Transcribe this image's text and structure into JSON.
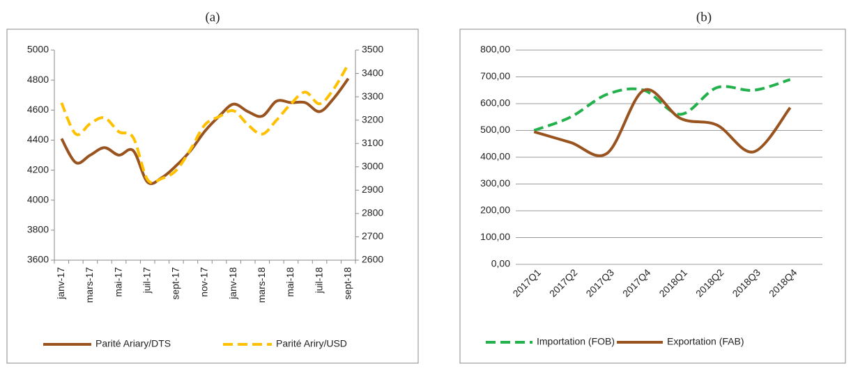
{
  "chart_data": [
    {
      "type": "line",
      "title": "(a)",
      "categories": [
        "janv-17",
        null,
        "mars-17",
        null,
        "mai-17",
        null,
        "juil-17",
        null,
        "sept-17",
        null,
        "nov-17",
        null,
        "janv-18",
        null,
        "mars-18",
        null,
        "mai-18",
        null,
        "juil-18",
        null,
        "sept-18"
      ],
      "series": [
        {
          "name": "Parité Ariary/DTS",
          "color": "#99531f",
          "line_style": "solid",
          "values": [
            4410,
            4250,
            4300,
            4350,
            4300,
            4330,
            4120,
            4150,
            4230,
            4330,
            4460,
            4560,
            4640,
            4590,
            4560,
            4660,
            4650,
            4650,
            4590,
            4680,
            4810
          ]
        },
        {
          "name": "Parité Ariry/USD",
          "color": "#ffc000",
          "line_style": "dashed",
          "axis": "y2",
          "values": [
            3274,
            3140,
            3185,
            3210,
            3150,
            3125,
            2945,
            2950,
            2985,
            3075,
            3180,
            3215,
            3240,
            3180,
            3140,
            3200,
            3270,
            3320,
            3270,
            3335,
            3440
          ]
        }
      ],
      "ylim": [
        3600,
        5000
      ],
      "yticks": [
        3600,
        3800,
        4000,
        4200,
        4400,
        4600,
        4800,
        5000
      ],
      "y2lim": [
        2600,
        3500
      ],
      "y2ticks": [
        2600,
        2700,
        2800,
        2900,
        3000,
        3100,
        3200,
        3300,
        3400,
        3500
      ],
      "grid": false,
      "legend": "bottom"
    },
    {
      "type": "line",
      "title": "(b)",
      "categories": [
        "2017Q1",
        "2017Q2",
        "2017Q3",
        "2017Q4",
        "2018Q1",
        "2018Q2",
        "2018Q3",
        "2018Q4"
      ],
      "series": [
        {
          "name": "Importation (FOB)",
          "color": "#22b14c",
          "line_style": "dashed",
          "values": [
            500,
            550,
            635,
            650,
            560,
            660,
            650,
            690
          ]
        },
        {
          "name": "Exportation (FAB)",
          "color": "#99531f",
          "line_style": "solid",
          "values": [
            495,
            455,
            415,
            650,
            545,
            520,
            420,
            585
          ]
        }
      ],
      "ylim": [
        0,
        800
      ],
      "yticks": [
        {
          "value": 0,
          "label": "0,00"
        },
        {
          "value": 100,
          "label": "100,00"
        },
        {
          "value": 200,
          "label": "200,00"
        },
        {
          "value": 300,
          "label": "300,00"
        },
        {
          "value": 400,
          "label": "400,00"
        },
        {
          "value": 500,
          "label": "500,00"
        },
        {
          "value": 600,
          "label": "600,00"
        },
        {
          "value": 700,
          "label": "700,00"
        },
        {
          "value": 800,
          "label": "800,00"
        }
      ],
      "grid": true,
      "legend": "bottom"
    }
  ]
}
